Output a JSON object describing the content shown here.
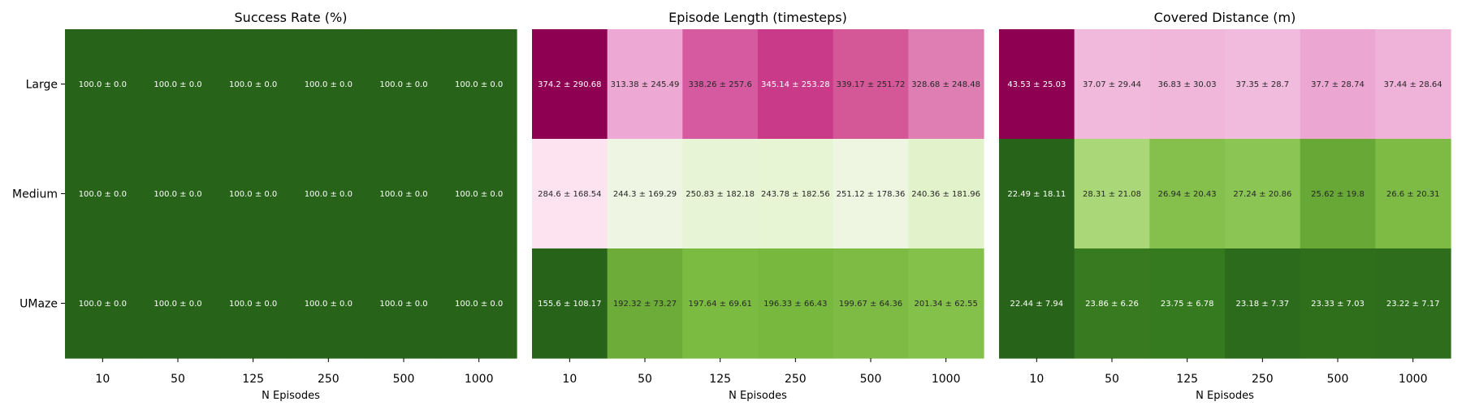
{
  "chart_data": [
    {
      "type": "heatmap",
      "title": "Success Rate (%)",
      "xlabel": "N Episodes",
      "ylabel": "",
      "x": [
        "10",
        "50",
        "125",
        "250",
        "500",
        "1000"
      ],
      "y": [
        "Large",
        "Medium",
        "UMaze"
      ],
      "colormap": "PiYG",
      "values": [
        [
          100.0,
          100.0,
          100.0,
          100.0,
          100.0,
          100.0
        ],
        [
          100.0,
          100.0,
          100.0,
          100.0,
          100.0,
          100.0
        ],
        [
          100.0,
          100.0,
          100.0,
          100.0,
          100.0,
          100.0
        ]
      ],
      "std": [
        [
          0.0,
          0.0,
          0.0,
          0.0,
          0.0,
          0.0
        ],
        [
          0.0,
          0.0,
          0.0,
          0.0,
          0.0,
          0.0
        ],
        [
          0.0,
          0.0,
          0.0,
          0.0,
          0.0,
          0.0
        ]
      ],
      "annotations": [
        [
          "100.0 ± 0.0",
          "100.0 ± 0.0",
          "100.0 ± 0.0",
          "100.0 ± 0.0",
          "100.0 ± 0.0",
          "100.0 ± 0.0"
        ],
        [
          "100.0 ± 0.0",
          "100.0 ± 0.0",
          "100.0 ± 0.0",
          "100.0 ± 0.0",
          "100.0 ± 0.0",
          "100.0 ± 0.0"
        ],
        [
          "100.0 ± 0.0",
          "100.0 ± 0.0",
          "100.0 ± 0.0",
          "100.0 ± 0.0",
          "100.0 ± 0.0",
          "100.0 ± 0.0"
        ]
      ],
      "cell_colors": [
        [
          "#276419",
          "#276419",
          "#276419",
          "#276419",
          "#276419",
          "#276419"
        ],
        [
          "#276419",
          "#276419",
          "#276419",
          "#276419",
          "#276419",
          "#276419"
        ],
        [
          "#276419",
          "#276419",
          "#276419",
          "#276419",
          "#276419",
          "#276419"
        ]
      ]
    },
    {
      "type": "heatmap",
      "title": "Episode Length (timesteps)",
      "xlabel": "N Episodes",
      "ylabel": "",
      "x": [
        "10",
        "50",
        "125",
        "250",
        "500",
        "1000"
      ],
      "y": [
        "Large",
        "Medium",
        "UMaze"
      ],
      "colormap": "PiYG",
      "values": [
        [
          374.2,
          313.38,
          338.26,
          345.14,
          339.17,
          328.68
        ],
        [
          284.6,
          244.3,
          250.83,
          243.78,
          251.12,
          240.36
        ],
        [
          155.6,
          192.32,
          197.64,
          196.33,
          199.67,
          201.34
        ]
      ],
      "std": [
        [
          290.68,
          245.49,
          257.6,
          253.28,
          251.72,
          248.48
        ],
        [
          168.54,
          169.29,
          182.18,
          182.56,
          178.36,
          181.96
        ],
        [
          108.17,
          73.27,
          69.61,
          66.43,
          64.36,
          62.55
        ]
      ],
      "annotations": [
        [
          "374.2 ± 290.68",
          "313.38 ± 245.49",
          "338.26 ± 257.6",
          "345.14 ± 253.28",
          "339.17 ± 251.72",
          "328.68 ± 248.48"
        ],
        [
          "284.6 ± 168.54",
          "244.3 ± 169.29",
          "250.83 ± 182.18",
          "243.78 ± 182.56",
          "251.12 ± 178.36",
          "240.36 ± 181.96"
        ],
        [
          "155.6 ± 108.17",
          "192.32 ± 73.27",
          "197.64 ± 69.61",
          "196.33 ± 66.43",
          "199.67 ± 64.36",
          "201.34 ± 62.55"
        ]
      ],
      "cell_colors": [
        [
          "#8e0152",
          "#eda9d3",
          "#d55aa0",
          "#c93b89",
          "#d45798",
          "#de7eb3"
        ],
        [
          "#fde3f0",
          "#eef5e2",
          "#e7f4d6",
          "#e8f5d5",
          "#eef6e2",
          "#e2f2ca"
        ],
        [
          "#276419",
          "#6eac3a",
          "#7cbb42",
          "#78b83f",
          "#7dbb45",
          "#84c14b"
        ]
      ]
    },
    {
      "type": "heatmap",
      "title": "Covered Distance (m)",
      "xlabel": "N Episodes",
      "ylabel": "",
      "x": [
        "10",
        "50",
        "125",
        "250",
        "500",
        "1000"
      ],
      "y": [
        "Large",
        "Medium",
        "UMaze"
      ],
      "colormap": "PiYG",
      "values": [
        [
          43.53,
          37.07,
          36.83,
          37.35,
          37.7,
          37.44
        ],
        [
          22.49,
          28.31,
          26.94,
          27.24,
          25.62,
          26.6
        ],
        [
          22.44,
          23.86,
          23.75,
          23.18,
          23.33,
          23.22
        ]
      ],
      "std": [
        [
          25.03,
          29.44,
          30.03,
          28.7,
          28.74,
          28.64
        ],
        [
          18.11,
          21.08,
          20.43,
          20.86,
          19.8,
          20.31
        ],
        [
          7.94,
          6.26,
          6.78,
          7.37,
          7.03,
          7.17
        ]
      ],
      "annotations": [
        [
          "43.53 ± 25.03",
          "37.07 ± 29.44",
          "36.83 ± 30.03",
          "37.35 ± 28.7",
          "37.7 ± 28.74",
          "37.44 ± 28.64"
        ],
        [
          "22.49 ± 18.11",
          "28.31 ± 21.08",
          "26.94 ± 20.43",
          "27.24 ± 20.86",
          "25.62 ± 19.8",
          "26.6 ± 20.31"
        ],
        [
          "22.44 ± 7.94",
          "23.86 ± 6.26",
          "23.75 ± 6.78",
          "23.18 ± 7.37",
          "23.33 ± 7.03",
          "23.22 ± 7.17"
        ]
      ],
      "cell_colors": [
        [
          "#8e0152",
          "#f1b9dc",
          "#f0b7db",
          "#f1bbdd",
          "#eca6d2",
          "#efb3d9"
        ],
        [
          "#276419",
          "#aad878",
          "#84c04b",
          "#8bc553",
          "#68a836",
          "#7dbb45"
        ],
        [
          "#276419",
          "#387a20",
          "#367a1f",
          "#2c6b1b",
          "#2f6f1c",
          "#2d6d1c"
        ]
      ]
    }
  ]
}
